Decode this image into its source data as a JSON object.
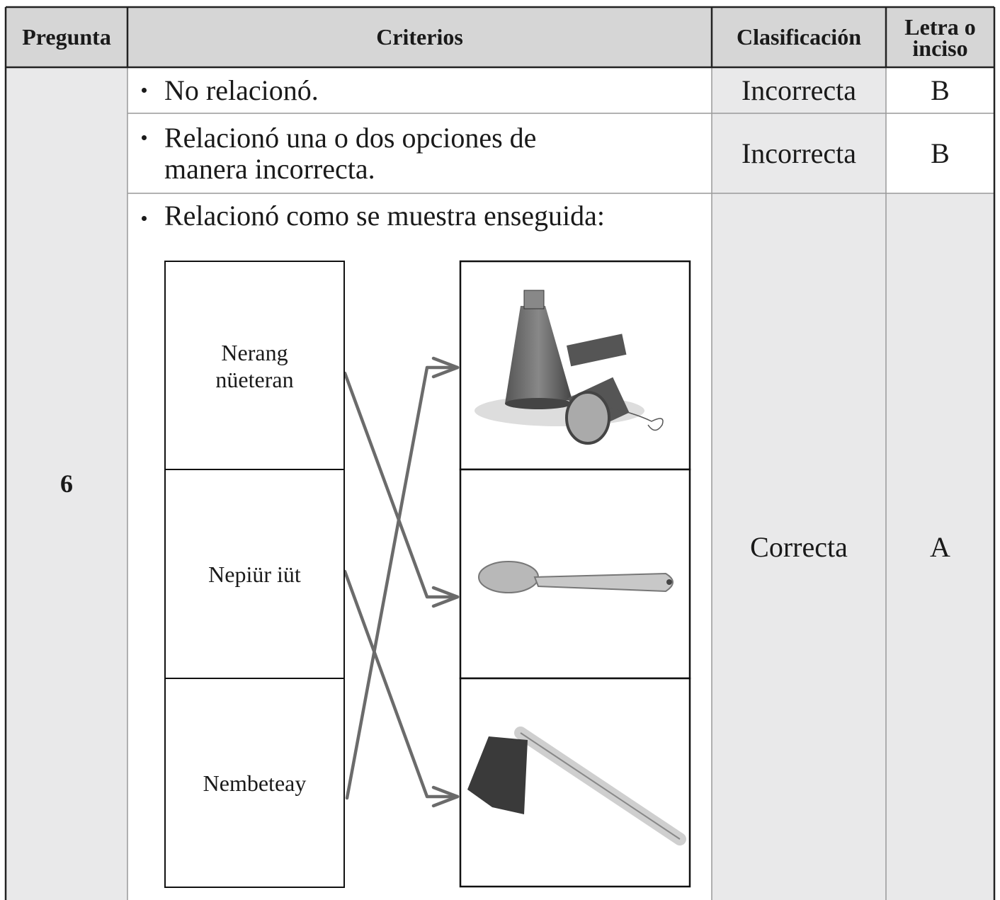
{
  "table": {
    "headers": [
      "Pregunta",
      "Criterios",
      "Clasificación",
      "Letra o inciso"
    ],
    "question": "6",
    "rows": [
      {
        "criterion": "No relacionó.",
        "classification": "Incorrecta",
        "letter": "B"
      },
      {
        "criterion": "Relacionó una o dos opciones de manera incorrecta.",
        "classification": "Incorrecta",
        "letter": "B"
      },
      {
        "criterion": "Relacionó como se muestra enseguida:",
        "classification": "Correcta",
        "letter": "A"
      }
    ]
  },
  "matching": {
    "words": [
      "Nerang nüeteran",
      "Nepiür iüt",
      "Nembeteay"
    ]
  }
}
